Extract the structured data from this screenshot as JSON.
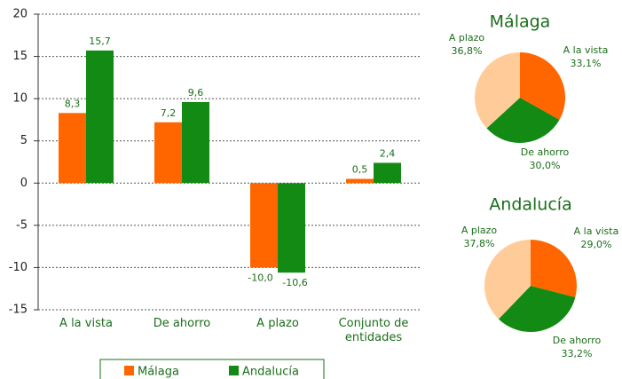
{
  "chart_data": [
    {
      "type": "bar",
      "categories": [
        "A la vista",
        "De ahorro",
        "A plazo",
        "Conjunto de entidades"
      ],
      "series": [
        {
          "name": "Málaga",
          "color": "#ff6600",
          "values": [
            8.3,
            7.2,
            -10.0,
            0.5
          ],
          "value_labels": [
            "8,3",
            "7,2",
            "-10,0",
            "0,5"
          ]
        },
        {
          "name": "Andalucía",
          "color": "#138a13",
          "values": [
            15.7,
            9.6,
            -10.6,
            2.4
          ],
          "value_labels": [
            "15,7",
            "9,6",
            "-10,6",
            "2,4"
          ]
        }
      ],
      "ylim": [
        -15,
        20
      ],
      "yticks": [
        -15,
        -10,
        -5,
        0,
        5,
        10,
        15,
        20
      ],
      "grid": true,
      "legend": "bottom"
    },
    {
      "type": "pie",
      "title": "Málaga",
      "categories": [
        "A la vista",
        "De ahorro",
        "A plazo"
      ],
      "values": [
        33.1,
        30.0,
        36.8
      ],
      "value_labels": [
        "33,1%",
        "30,0%",
        "36,8%"
      ],
      "colors": [
        "#ff6600",
        "#138a13",
        "#ffcc99"
      ]
    },
    {
      "type": "pie",
      "title": "Andalucía",
      "categories": [
        "A la vista",
        "De ahorro",
        "A plazo"
      ],
      "values": [
        29.0,
        33.2,
        37.8
      ],
      "value_labels": [
        "29,0%",
        "33,2%",
        "37,8%"
      ],
      "colors": [
        "#ff6600",
        "#138a13",
        "#ffcc99"
      ]
    }
  ]
}
